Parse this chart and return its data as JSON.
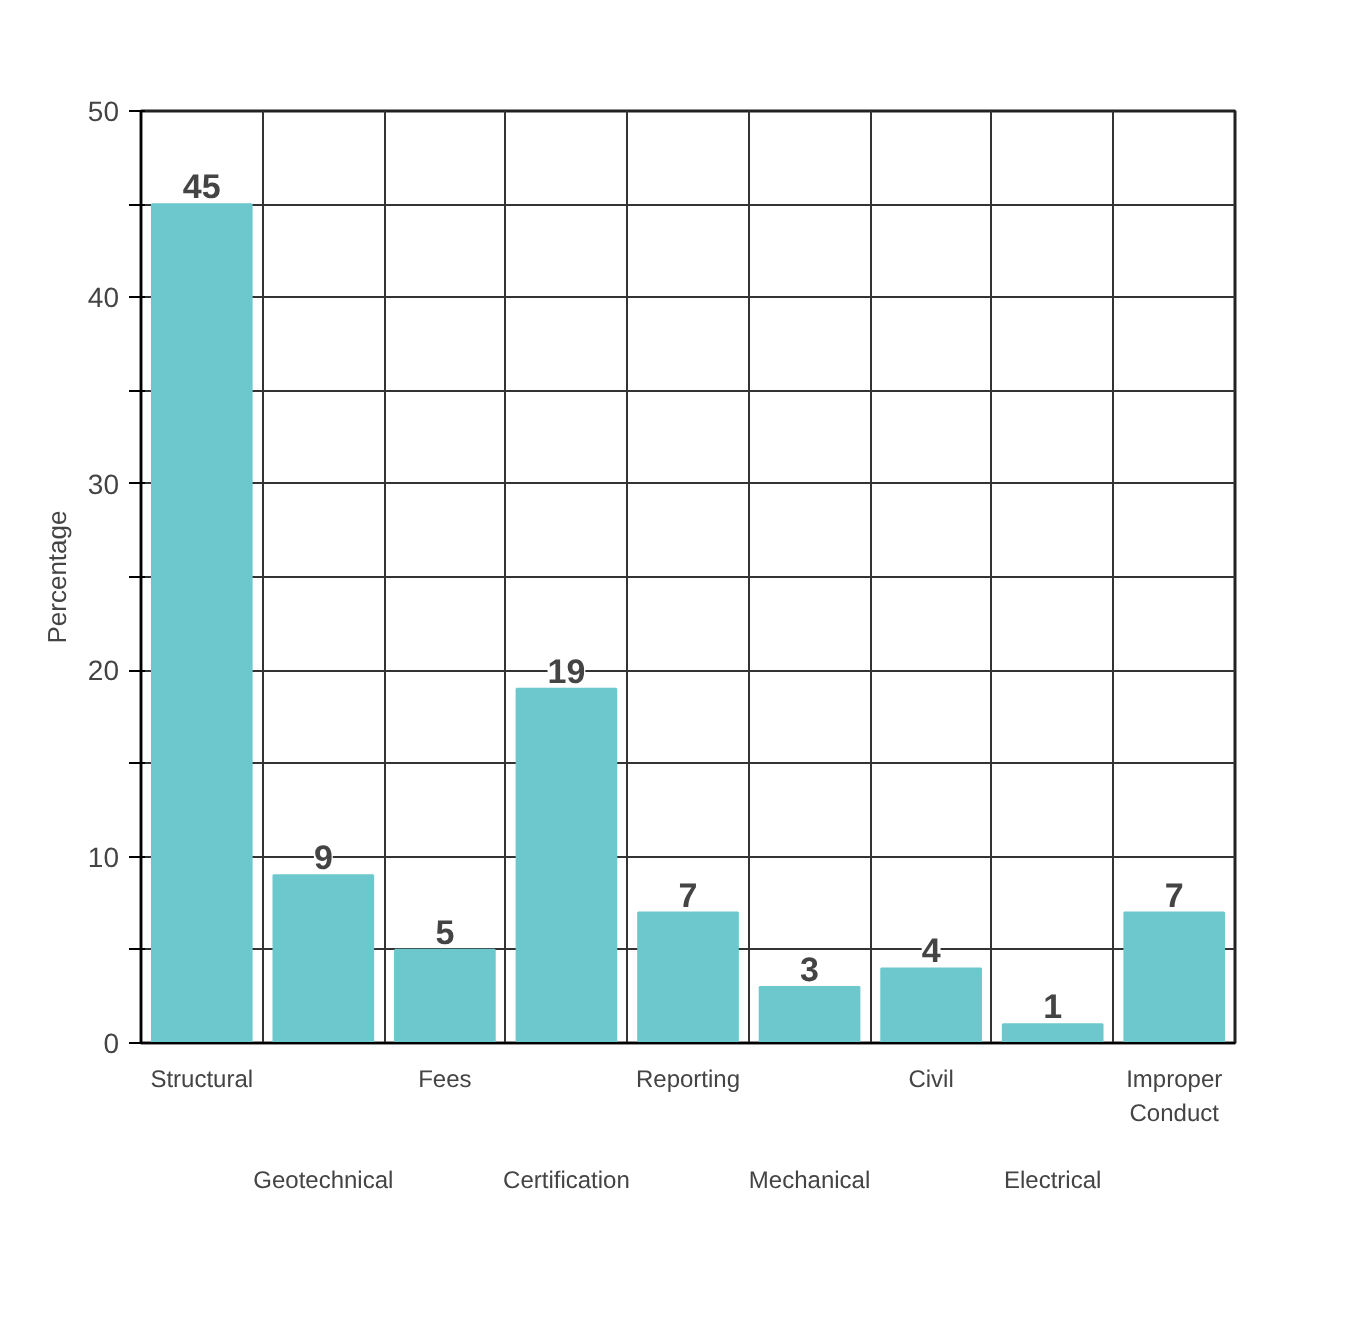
{
  "chart_data": {
    "type": "bar",
    "ylabel": "Percentage",
    "categories": [
      "Structural",
      "Geotechnical",
      "Fees",
      "Certification",
      "Reporting",
      "Mechanical",
      "Civil",
      "Electrical",
      "Improper Conduct"
    ],
    "values": [
      45,
      9,
      5,
      19,
      7,
      3,
      4,
      1,
      7
    ],
    "color": "#6cc8cc",
    "ylim": [
      0,
      50
    ],
    "yticks": [
      0,
      {
        "value": 5,
        "label": null
      },
      10,
      {
        "value": 15,
        "label": null
      },
      20,
      {
        "value": 25,
        "label": null
      },
      30,
      {
        "value": 35,
        "label": null
      },
      40,
      {
        "value": 45,
        "label": null
      },
      50
    ],
    "grid": true,
    "data_labels": true
  }
}
